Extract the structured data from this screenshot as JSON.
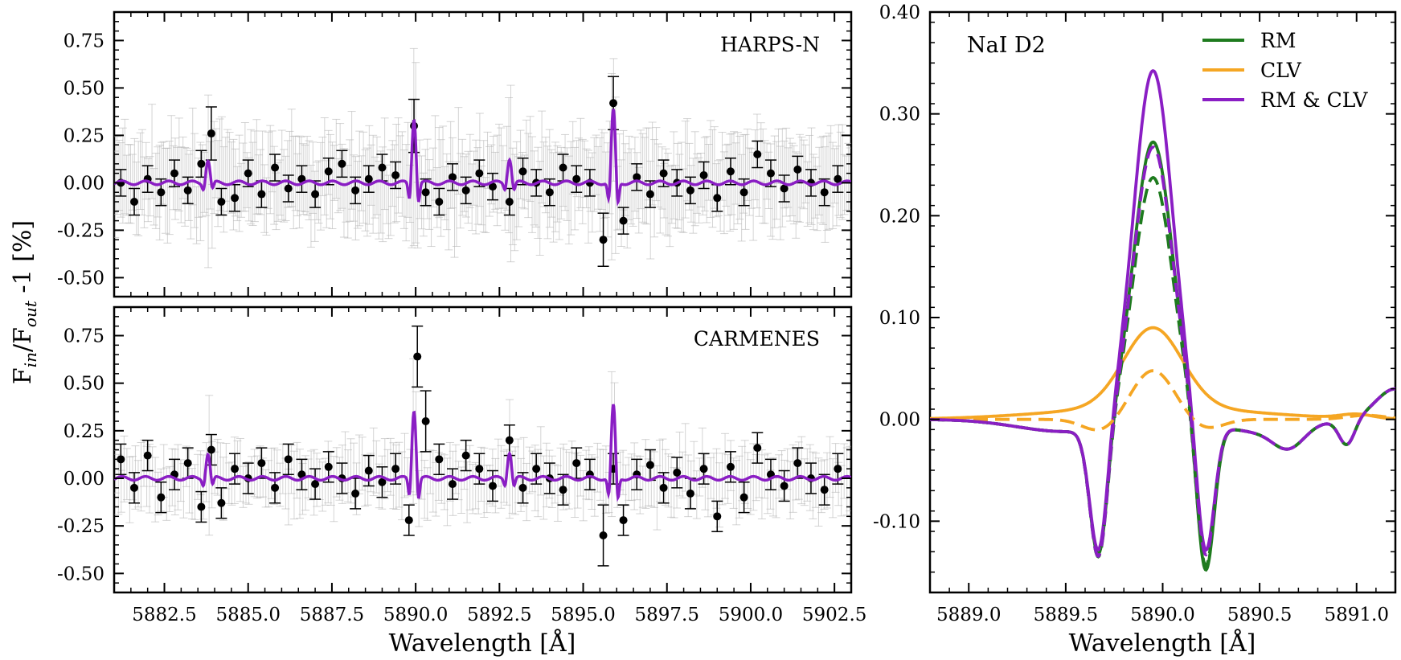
{
  "ylabel_main": "F",
  "ylabel_in": "in",
  "ylabel_mid": "/F",
  "ylabel_out": "out",
  "ylabel_end": " -1 [%]",
  "colors": {
    "rm": "#1e7b1e",
    "clv": "#f5a623",
    "rmclv": "#8a1ec4",
    "points": "#000000",
    "grey_err": "#b0b0b0"
  },
  "chart_data": [
    {
      "type": "scatter",
      "label": "HARPS-N",
      "xlabel": "",
      "ylabel": "",
      "xlim": [
        5881.0,
        5903.0
      ],
      "ylim": [
        -0.6,
        0.9
      ],
      "yticks": [
        -0.5,
        -0.25,
        0.0,
        0.25,
        0.5,
        0.75
      ],
      "ytick_labels": [
        "-0.50",
        "-0.25",
        "0.00",
        "0.25",
        "0.50",
        "0.75"
      ],
      "binned_error": 0.07,
      "lines": [
        {
          "x": 5883.8,
          "a": 0.12
        },
        {
          "x": 5889.95,
          "a": 0.34
        },
        {
          "x": 5892.8,
          "a": 0.13
        },
        {
          "x": 5895.9,
          "a": 0.38
        }
      ],
      "x": [
        5881.2,
        5881.6,
        5882.0,
        5882.4,
        5882.8,
        5883.2,
        5883.6,
        5883.9,
        5884.2,
        5884.6,
        5885.0,
        5885.4,
        5885.8,
        5886.2,
        5886.6,
        5887.0,
        5887.4,
        5887.8,
        5888.2,
        5888.6,
        5889.0,
        5889.4,
        5889.95,
        5890.3,
        5890.7,
        5891.1,
        5891.5,
        5891.9,
        5892.3,
        5892.8,
        5893.2,
        5893.6,
        5894.0,
        5894.4,
        5894.8,
        5895.2,
        5895.6,
        5895.9,
        5896.2,
        5896.6,
        5897.0,
        5897.4,
        5897.8,
        5898.2,
        5898.6,
        5899.0,
        5899.4,
        5899.8,
        5900.2,
        5900.6,
        5901.0,
        5901.4,
        5901.8,
        5902.2,
        5902.6
      ],
      "y": [
        0.0,
        -0.1,
        0.02,
        -0.05,
        0.05,
        -0.04,
        0.1,
        0.26,
        -0.1,
        -0.08,
        0.05,
        -0.06,
        0.08,
        -0.03,
        0.02,
        -0.06,
        0.06,
        0.1,
        -0.04,
        0.02,
        0.08,
        0.04,
        0.3,
        -0.05,
        -0.1,
        0.03,
        -0.04,
        0.05,
        -0.02,
        -0.1,
        0.06,
        0.0,
        -0.05,
        0.08,
        0.02,
        0.0,
        -0.3,
        0.42,
        -0.2,
        0.03,
        -0.06,
        0.05,
        0.0,
        -0.04,
        0.04,
        -0.08,
        0.06,
        -0.05,
        0.15,
        0.05,
        -0.03,
        0.07,
        0.0,
        -0.05,
        0.02
      ]
    },
    {
      "type": "scatter",
      "label": "CARMENES",
      "xlabel": "Wavelength [Å]",
      "ylabel": "",
      "xlim": [
        5881.0,
        5903.0
      ],
      "ylim": [
        -0.6,
        0.9
      ],
      "xticks": [
        5882.5,
        5885.0,
        5887.5,
        5890.0,
        5892.5,
        5895.0,
        5897.5,
        5900.0,
        5902.5
      ],
      "xtick_labels": [
        "5882.5",
        "5885.0",
        "5887.5",
        "5890.0",
        "5892.5",
        "5895.0",
        "5897.5",
        "5900.0",
        "5902.5"
      ],
      "yticks": [
        -0.5,
        -0.25,
        0.0,
        0.25,
        0.5,
        0.75
      ],
      "ytick_labels": [
        "-0.50",
        "-0.25",
        "0.00",
        "0.25",
        "0.50",
        "0.75"
      ],
      "binned_error": 0.08,
      "lines": [
        {
          "x": 5883.8,
          "a": 0.13
        },
        {
          "x": 5889.95,
          "a": 0.36
        },
        {
          "x": 5892.8,
          "a": 0.14
        },
        {
          "x": 5895.9,
          "a": 0.38
        }
      ],
      "x": [
        5881.2,
        5881.6,
        5882.0,
        5882.4,
        5882.8,
        5883.2,
        5883.6,
        5883.9,
        5884.2,
        5884.6,
        5885.0,
        5885.4,
        5885.8,
        5886.2,
        5886.6,
        5887.0,
        5887.4,
        5887.8,
        5888.2,
        5888.6,
        5889.0,
        5889.4,
        5889.8,
        5890.05,
        5890.3,
        5890.7,
        5891.1,
        5891.5,
        5891.9,
        5892.3,
        5892.8,
        5893.2,
        5893.6,
        5894.0,
        5894.4,
        5894.8,
        5895.2,
        5895.6,
        5895.9,
        5896.2,
        5896.6,
        5897.0,
        5897.4,
        5897.8,
        5898.2,
        5898.6,
        5899.0,
        5899.4,
        5899.8,
        5900.2,
        5900.6,
        5901.0,
        5901.4,
        5901.8,
        5902.2,
        5902.6
      ],
      "y": [
        0.1,
        -0.05,
        0.12,
        -0.1,
        0.02,
        0.08,
        -0.15,
        0.15,
        -0.13,
        0.05,
        0.0,
        0.08,
        -0.05,
        0.1,
        0.02,
        -0.03,
        0.06,
        0.0,
        -0.08,
        0.04,
        -0.02,
        0.05,
        -0.22,
        0.64,
        0.3,
        0.1,
        -0.03,
        0.12,
        0.05,
        -0.04,
        0.2,
        -0.05,
        0.05,
        0.0,
        -0.06,
        0.08,
        0.02,
        -0.3,
        0.05,
        -0.22,
        0.02,
        0.07,
        -0.05,
        0.03,
        -0.08,
        0.05,
        -0.2,
        0.06,
        -0.1,
        0.16,
        0.02,
        -0.04,
        0.08,
        0.0,
        -0.06,
        0.05
      ]
    },
    {
      "type": "line",
      "label": "NaI D2",
      "xlabel": "Wavelength [Å]",
      "ylabel": "",
      "xlim": [
        5888.8,
        5891.2
      ],
      "ylim": [
        -0.17,
        0.4
      ],
      "xticks": [
        5889.0,
        5889.5,
        5890.0,
        5890.5,
        5891.0
      ],
      "xtick_labels": [
        "5889.0",
        "5889.5",
        "5890.0",
        "5890.5",
        "5891.0"
      ],
      "yticks": [
        -0.1,
        0.0,
        0.1,
        0.2,
        0.3,
        0.4
      ],
      "ytick_labels": [
        "-0.10",
        "0.00",
        "0.10",
        "0.20",
        "0.30",
        "0.40"
      ],
      "legend": "upper right",
      "series": [
        {
          "name": "RM",
          "color": "#1e7b1e",
          "style": "solid",
          "peak": 0.275,
          "dip1": -0.128,
          "dip2": -0.15
        },
        {
          "name": "CLV",
          "color": "#f5a623",
          "style": "solid",
          "peak": 0.078
        },
        {
          "name": "RM & CLV",
          "color": "#8a1ec4",
          "style": "solid",
          "peak": 0.345,
          "dip1": -0.125,
          "dip2": -0.132
        },
        {
          "name": "",
          "color": "#1e7b1e",
          "style": "dashed",
          "peak": 0.24,
          "dip1": -0.13,
          "dip2": -0.145
        },
        {
          "name": "",
          "color": "#f5a623",
          "style": "dashed",
          "peak": 0.048,
          "dip1": -0.012,
          "dip2": -0.012
        },
        {
          "name": "",
          "color": "#8a1ec4",
          "style": "dashed",
          "peak": 0.27,
          "dip1": -0.13,
          "dip2": -0.135
        }
      ]
    }
  ]
}
